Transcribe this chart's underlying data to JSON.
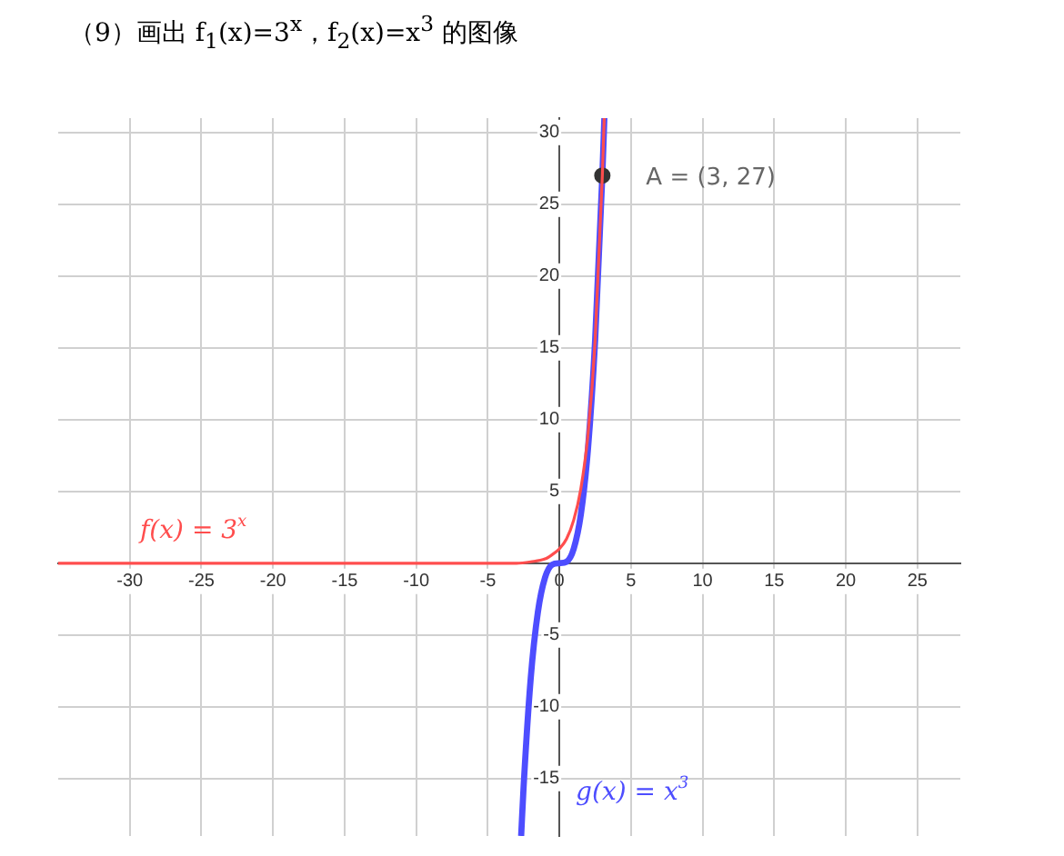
{
  "chart_data": {
    "type": "line",
    "title": "（9）画出 f$_{1}$(x)=3$^{x}$，f$_{2}$(x)=x$^{3}$ 的图像",
    "series": [
      {
        "name": "f(x) = 3$^{x}$",
        "color": "#ff4d4d",
        "x": [
          -35,
          -10,
          -5,
          -4,
          -3,
          -2,
          -1,
          -0.5,
          0,
          0.5,
          1,
          1.5,
          2,
          2.5,
          3,
          3.13
        ],
        "values": [
          0,
          0,
          0,
          0,
          0,
          0.1,
          0.3,
          0.6,
          1,
          1.7,
          3,
          5.2,
          9,
          15.6,
          27,
          31
        ]
      },
      {
        "name": "g(x) = x$^{3}$",
        "color": "#4d4dff",
        "x": [
          -2.67,
          -2.5,
          -2,
          -1.5,
          -1,
          -0.5,
          0,
          0.5,
          1,
          1.5,
          2,
          2.5,
          3,
          3.14
        ],
        "values": [
          -19,
          -15.6,
          -8,
          -3.4,
          -1,
          -0.1,
          0,
          0.1,
          1,
          3.4,
          8,
          15.6,
          27,
          31
        ]
      },
      {
        "type": "scatter",
        "color": "#333333",
        "marker": "circle",
        "x": [
          3
        ],
        "values": [
          27
        ]
      }
    ],
    "annotations": [
      {
        "text": "A = (3, 27)",
        "x": 3,
        "y": 27
      }
    ],
    "xlim": [
      -35,
      28
    ],
    "ylim": [
      -19,
      31
    ],
    "xticks": [
      -30,
      -25,
      -20,
      -15,
      -10,
      -5,
      0,
      5,
      10,
      15,
      20,
      25
    ],
    "yticks": [
      -15,
      -10,
      -5,
      5,
      10,
      15,
      20,
      25,
      30
    ],
    "grid": true,
    "legend": false,
    "marker": "none",
    "line_style": "solid"
  }
}
